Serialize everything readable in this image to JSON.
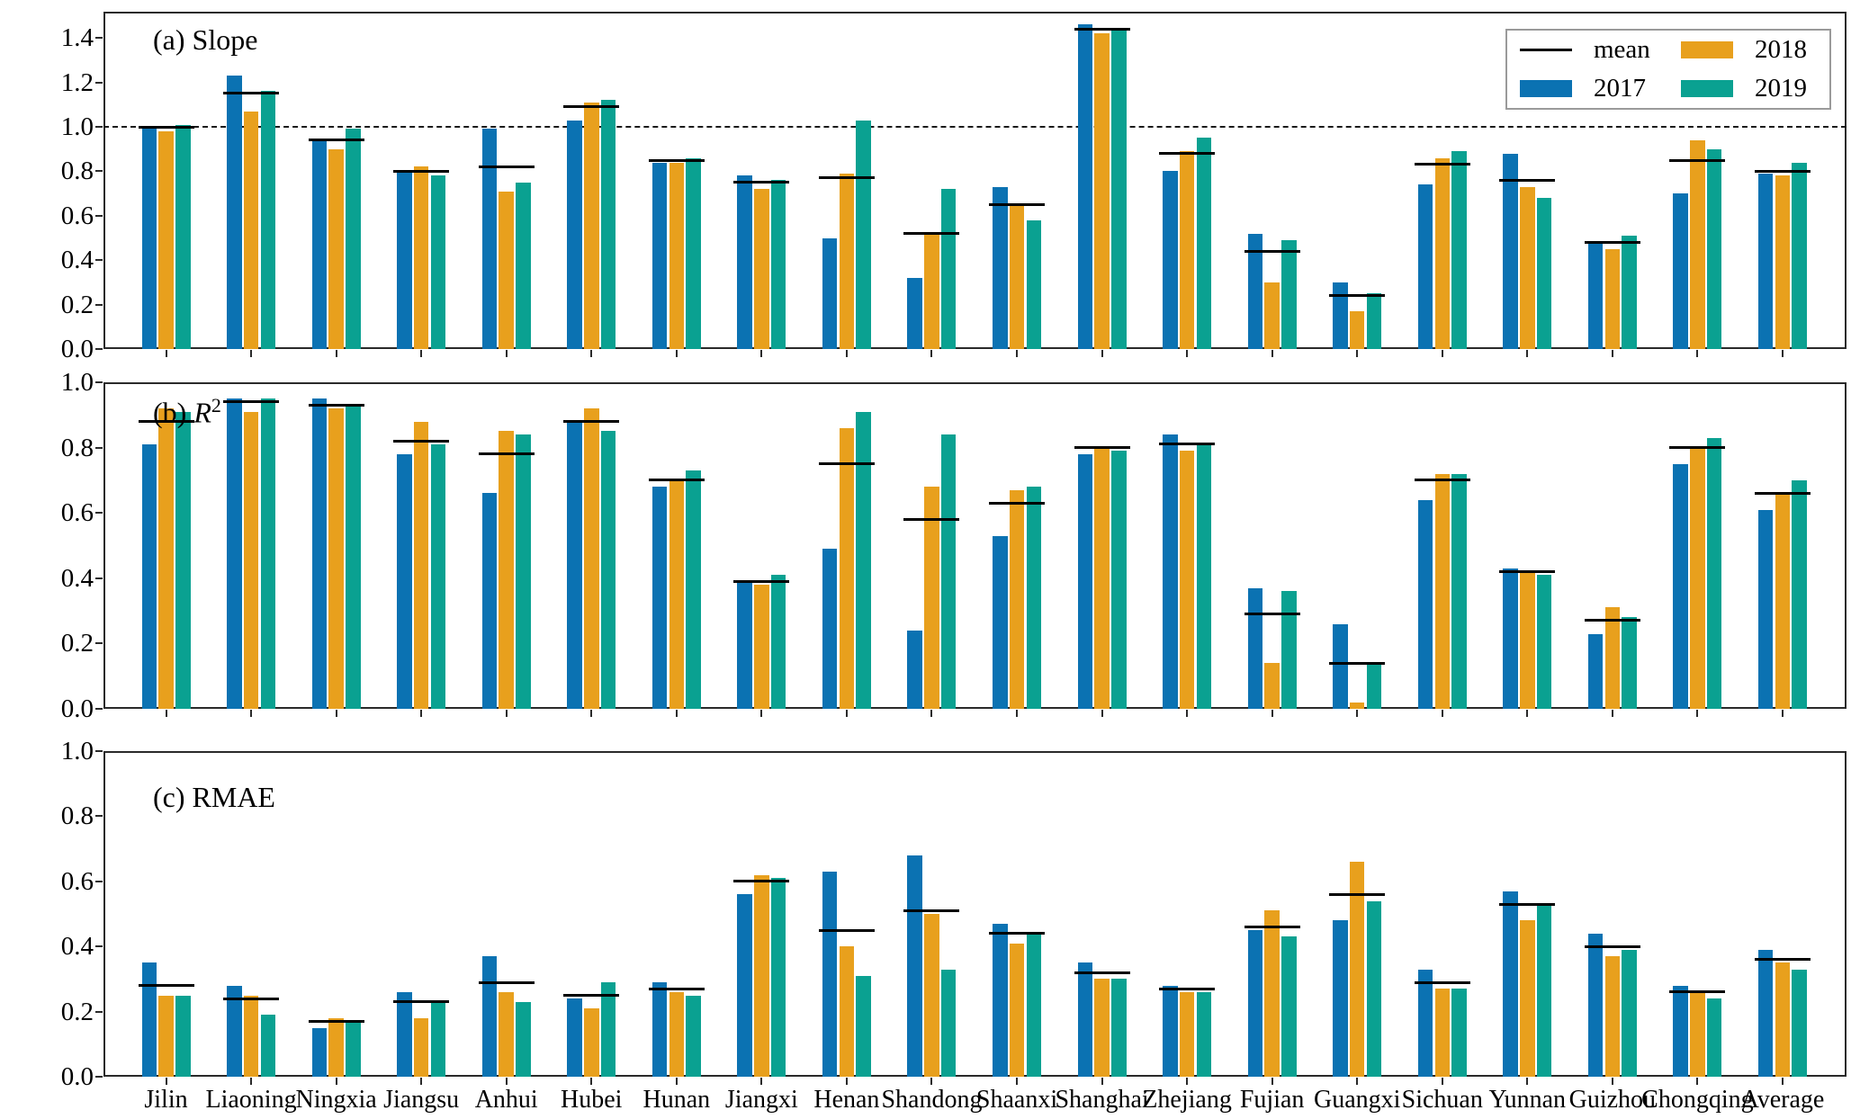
{
  "figure": {
    "panel_titles": {
      "a_prefix": "(a) ",
      "a_label": "Slope",
      "b_prefix": "(b) ",
      "b_symbol": "R",
      "b_sup": "2",
      "c_prefix": "(c) ",
      "c_label": "RMAE"
    },
    "legend": {
      "mean": "mean",
      "y2017": "2017",
      "y2018": "2018",
      "y2019": "2019"
    }
  },
  "colors": {
    "bar2017": "#0b72b2",
    "bar2018": "#e8a01d",
    "bar2019": "#0aa191",
    "mean_line": "#000000",
    "axis": "#2a2a2a",
    "reference_dash": "#1a1a1a"
  },
  "chart_data": [
    {
      "type": "bar",
      "title": "(a) Slope",
      "categories": [
        "Jilin",
        "Liaoning",
        "Ningxia",
        "Jiangsu",
        "Anhui",
        "Hubei",
        "Hunan",
        "Jiangxi",
        "Henan",
        "Shandong",
        "Shaanxi",
        "Shanghai",
        "Zhejiang",
        "Fujian",
        "Guangxi",
        "Sichuan",
        "Yunnan",
        "Guizhou",
        "Chongqing",
        "Average"
      ],
      "series": [
        {
          "name": "2017",
          "values": [
            0.99,
            1.23,
            0.94,
            0.8,
            0.99,
            1.03,
            0.84,
            0.78,
            0.5,
            0.32,
            0.73,
            1.46,
            0.8,
            0.52,
            0.3,
            0.74,
            0.88,
            0.48,
            0.7,
            0.79
          ]
        },
        {
          "name": "2018",
          "values": [
            0.98,
            1.07,
            0.9,
            0.82,
            0.71,
            1.11,
            0.84,
            0.72,
            0.79,
            0.52,
            0.65,
            1.42,
            0.89,
            0.3,
            0.17,
            0.86,
            0.73,
            0.45,
            0.94,
            0.78
          ]
        },
        {
          "name": "2019",
          "values": [
            1.01,
            1.16,
            0.99,
            0.78,
            0.75,
            1.12,
            0.86,
            0.76,
            1.03,
            0.72,
            0.58,
            1.44,
            0.95,
            0.49,
            0.25,
            0.89,
            0.68,
            0.51,
            0.9,
            0.84
          ]
        }
      ],
      "mean_values": [
        1.0,
        1.15,
        0.94,
        0.8,
        0.82,
        1.09,
        0.85,
        0.75,
        0.77,
        0.52,
        0.65,
        1.44,
        0.88,
        0.44,
        0.24,
        0.83,
        0.76,
        0.48,
        0.85,
        0.8
      ],
      "ylim": [
        0,
        1.52
      ],
      "yticks": [
        0.0,
        0.2,
        0.4,
        0.6,
        0.8,
        1.0,
        1.2,
        1.4
      ],
      "reference_line": 1.0,
      "grid": false,
      "legend_position": "top-right"
    },
    {
      "type": "bar",
      "title": "(b) R2",
      "categories": [
        "Jilin",
        "Liaoning",
        "Ningxia",
        "Jiangsu",
        "Anhui",
        "Hubei",
        "Hunan",
        "Jiangxi",
        "Henan",
        "Shandong",
        "Shaanxi",
        "Shanghai",
        "Zhejiang",
        "Fujian",
        "Guangxi",
        "Sichuan",
        "Yunnan",
        "Guizhou",
        "Chongqing",
        "Average"
      ],
      "series": [
        {
          "name": "2017",
          "values": [
            0.81,
            0.95,
            0.95,
            0.78,
            0.66,
            0.88,
            0.68,
            0.39,
            0.49,
            0.24,
            0.53,
            0.78,
            0.84,
            0.37,
            0.26,
            0.64,
            0.43,
            0.23,
            0.75,
            0.61
          ]
        },
        {
          "name": "2018",
          "values": [
            0.92,
            0.91,
            0.92,
            0.88,
            0.85,
            0.92,
            0.7,
            0.38,
            0.86,
            0.68,
            0.67,
            0.8,
            0.79,
            0.14,
            0.02,
            0.72,
            0.42,
            0.31,
            0.8,
            0.66
          ]
        },
        {
          "name": "2019",
          "values": [
            0.91,
            0.95,
            0.93,
            0.81,
            0.84,
            0.85,
            0.73,
            0.41,
            0.91,
            0.84,
            0.68,
            0.79,
            0.81,
            0.36,
            0.14,
            0.72,
            0.41,
            0.28,
            0.83,
            0.7
          ]
        }
      ],
      "mean_values": [
        0.88,
        0.94,
        0.93,
        0.82,
        0.78,
        0.88,
        0.7,
        0.39,
        0.75,
        0.58,
        0.63,
        0.8,
        0.81,
        0.29,
        0.14,
        0.7,
        0.42,
        0.27,
        0.8,
        0.66
      ],
      "ylim": [
        0,
        1.0
      ],
      "yticks": [
        0.0,
        0.2,
        0.4,
        0.6,
        0.8,
        1.0
      ],
      "reference_line": null,
      "grid": false
    },
    {
      "type": "bar",
      "title": "(c) RMAE",
      "categories": [
        "Jilin",
        "Liaoning",
        "Ningxia",
        "Jiangsu",
        "Anhui",
        "Hubei",
        "Hunan",
        "Jiangxi",
        "Henan",
        "Shandong",
        "Shaanxi",
        "Shanghai",
        "Zhejiang",
        "Fujian",
        "Guangxi",
        "Sichuan",
        "Yunnan",
        "Guizhou",
        "Chongqing",
        "Average"
      ],
      "series": [
        {
          "name": "2017",
          "values": [
            0.35,
            0.28,
            0.15,
            0.26,
            0.37,
            0.24,
            0.29,
            0.56,
            0.63,
            0.68,
            0.47,
            0.35,
            0.28,
            0.45,
            0.48,
            0.33,
            0.57,
            0.44,
            0.28,
            0.39
          ]
        },
        {
          "name": "2018",
          "values": [
            0.25,
            0.25,
            0.18,
            0.18,
            0.26,
            0.21,
            0.26,
            0.62,
            0.4,
            0.5,
            0.41,
            0.3,
            0.26,
            0.51,
            0.66,
            0.27,
            0.48,
            0.37,
            0.26,
            0.35
          ]
        },
        {
          "name": "2019",
          "values": [
            0.25,
            0.19,
            0.17,
            0.23,
            0.23,
            0.29,
            0.25,
            0.61,
            0.31,
            0.33,
            0.44,
            0.3,
            0.26,
            0.43,
            0.54,
            0.27,
            0.53,
            0.39,
            0.24,
            0.33
          ]
        }
      ],
      "mean_values": [
        0.28,
        0.24,
        0.17,
        0.23,
        0.29,
        0.25,
        0.27,
        0.6,
        0.45,
        0.51,
        0.44,
        0.32,
        0.27,
        0.46,
        0.56,
        0.29,
        0.53,
        0.4,
        0.26,
        0.36
      ],
      "ylim": [
        0,
        1.0
      ],
      "yticks": [
        0.0,
        0.2,
        0.4,
        0.6,
        0.8,
        1.0
      ],
      "reference_line": null,
      "grid": false
    }
  ]
}
